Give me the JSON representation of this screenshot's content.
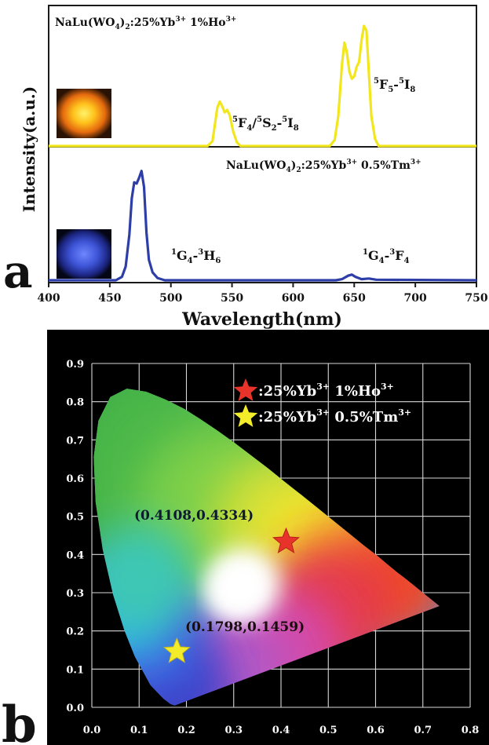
{
  "chart_data": [
    {
      "type": "line",
      "panel_label": "a",
      "xlabel": "Wavelength(nm)",
      "ylabel": "Intensity(a.u.)",
      "xlim": [
        400,
        750
      ],
      "x_ticks": [
        400,
        450,
        500,
        550,
        600,
        650,
        700,
        750
      ],
      "x_tick_labels": [
        "400",
        "450",
        "500",
        "550",
        "600",
        "650",
        "700",
        "750"
      ],
      "grid": false,
      "series": [
        {
          "name": "NaLu(WO4)2:25%Yb3+ 1%Ho3+",
          "color": "#f2e61c",
          "points": [
            [
              400,
              0
            ],
            [
              530,
              0
            ],
            [
              534,
              0.04
            ],
            [
              536,
              0.18
            ],
            [
              538,
              0.32
            ],
            [
              540,
              0.37
            ],
            [
              542,
              0.33
            ],
            [
              544,
              0.28
            ],
            [
              546,
              0.3
            ],
            [
              548,
              0.26
            ],
            [
              551,
              0.12
            ],
            [
              554,
              0.03
            ],
            [
              557,
              0
            ],
            [
              630,
              0
            ],
            [
              634,
              0.05
            ],
            [
              637,
              0.25
            ],
            [
              640,
              0.68
            ],
            [
              642,
              0.86
            ],
            [
              644,
              0.78
            ],
            [
              646,
              0.62
            ],
            [
              648,
              0.56
            ],
            [
              650,
              0.58
            ],
            [
              652,
              0.66
            ],
            [
              654,
              0.7
            ],
            [
              656,
              0.88
            ],
            [
              658,
              1.0
            ],
            [
              660,
              0.96
            ],
            [
              662,
              0.6
            ],
            [
              664,
              0.25
            ],
            [
              667,
              0.06
            ],
            [
              670,
              0
            ],
            [
              750,
              0
            ]
          ]
        },
        {
          "name": "NaLu(WO4)2:25%Yb3+ 0.5%Tm3+",
          "color": "#2e3ea8",
          "points": [
            [
              400,
              0
            ],
            [
              455,
              0
            ],
            [
              460,
              0.03
            ],
            [
              463,
              0.12
            ],
            [
              466,
              0.4
            ],
            [
              468,
              0.72
            ],
            [
              470,
              0.86
            ],
            [
              472,
              0.85
            ],
            [
              474,
              0.9
            ],
            [
              476,
              0.96
            ],
            [
              478,
              0.82
            ],
            [
              480,
              0.42
            ],
            [
              482,
              0.18
            ],
            [
              485,
              0.07
            ],
            [
              489,
              0.02
            ],
            [
              495,
              0
            ],
            [
              635,
              0
            ],
            [
              640,
              0.01
            ],
            [
              645,
              0.04
            ],
            [
              648,
              0.05
            ],
            [
              651,
              0.03
            ],
            [
              656,
              0.01
            ],
            [
              662,
              0.015
            ],
            [
              668,
              0.005
            ],
            [
              750,
              0
            ]
          ]
        }
      ],
      "annotations": {
        "ho_title": {
          "main": "NaLu(WO",
          "sub": "4",
          "mid": ")",
          "sub2": "2",
          "rest": ":25%Yb",
          "sup": "3+",
          "tail": " 1%Ho",
          "sup2": "3+"
        },
        "tm_title": {
          "main": "NaLu(WO",
          "sub": "4",
          "mid": ")",
          "sub2": "2",
          "rest": ":25%Yb",
          "sup": "3+",
          "tail": " 0.5%Tm",
          "sup2": "3+"
        },
        "ho_green_band": {
          "p1": "5",
          "t1": "F",
          "b1": "4",
          "slash": "/",
          "p2": "5",
          "t2": "S",
          "b2": "2",
          "dash": "-",
          "p3": "5",
          "t3": "I",
          "b3": "8"
        },
        "ho_red_band": {
          "p1": "5",
          "t1": "F",
          "b1": "5",
          "dash": "-",
          "p2": "5",
          "t2": "I",
          "b2": "8"
        },
        "tm_blue_band": {
          "p1": "1",
          "t1": "G",
          "b1": "4",
          "dash": "-",
          "p2": "3",
          "t2": "H",
          "b2": "6"
        },
        "tm_red_band": {
          "p1": "1",
          "t1": "G",
          "b1": "4",
          "dash": "-",
          "p2": "3",
          "t2": "F",
          "b2": "4"
        }
      }
    },
    {
      "type": "scatter",
      "panel_label": "b",
      "xlim": [
        0.0,
        0.8
      ],
      "ylim": [
        0.0,
        0.9
      ],
      "x_ticks": [
        0.0,
        0.1,
        0.2,
        0.3,
        0.4,
        0.5,
        0.6,
        0.7,
        0.8
      ],
      "y_ticks": [
        0.0,
        0.1,
        0.2,
        0.3,
        0.4,
        0.5,
        0.6,
        0.7,
        0.8,
        0.9
      ],
      "x_tick_labels": [
        "0.0",
        "0.1",
        "0.2",
        "0.3",
        "0.4",
        "0.5",
        "0.6",
        "0.7",
        "0.8"
      ],
      "y_tick_labels": [
        "0.0",
        "0.1",
        "0.2",
        "0.3",
        "0.4",
        "0.5",
        "0.6",
        "0.7",
        "0.8",
        "0.9"
      ],
      "grid": true,
      "background": "#000000",
      "grid_color": "#d8d8d8",
      "legend_position": "top-right",
      "series": [
        {
          "name": ":25%Yb3+ 1%Ho3+",
          "marker": "star",
          "color": "#e8332a",
          "x": 0.4108,
          "y": 0.4334,
          "label": "(0.4108,0.4334)"
        },
        {
          "name": ":25%Yb3+ 0.5%Tm3+",
          "marker": "star",
          "color": "#f3ec2a",
          "x": 0.1798,
          "y": 0.1459,
          "label": "(0.1798,0.1459)"
        }
      ],
      "legend": [
        {
          "prefix": ":25%Yb",
          "sup": "3+",
          "mid": " 1%Ho",
          "sup2": "3+"
        },
        {
          "prefix": ":25%Yb",
          "sup": "3+",
          "mid": " 0.5%Tm",
          "sup2": "3+"
        }
      ]
    }
  ]
}
